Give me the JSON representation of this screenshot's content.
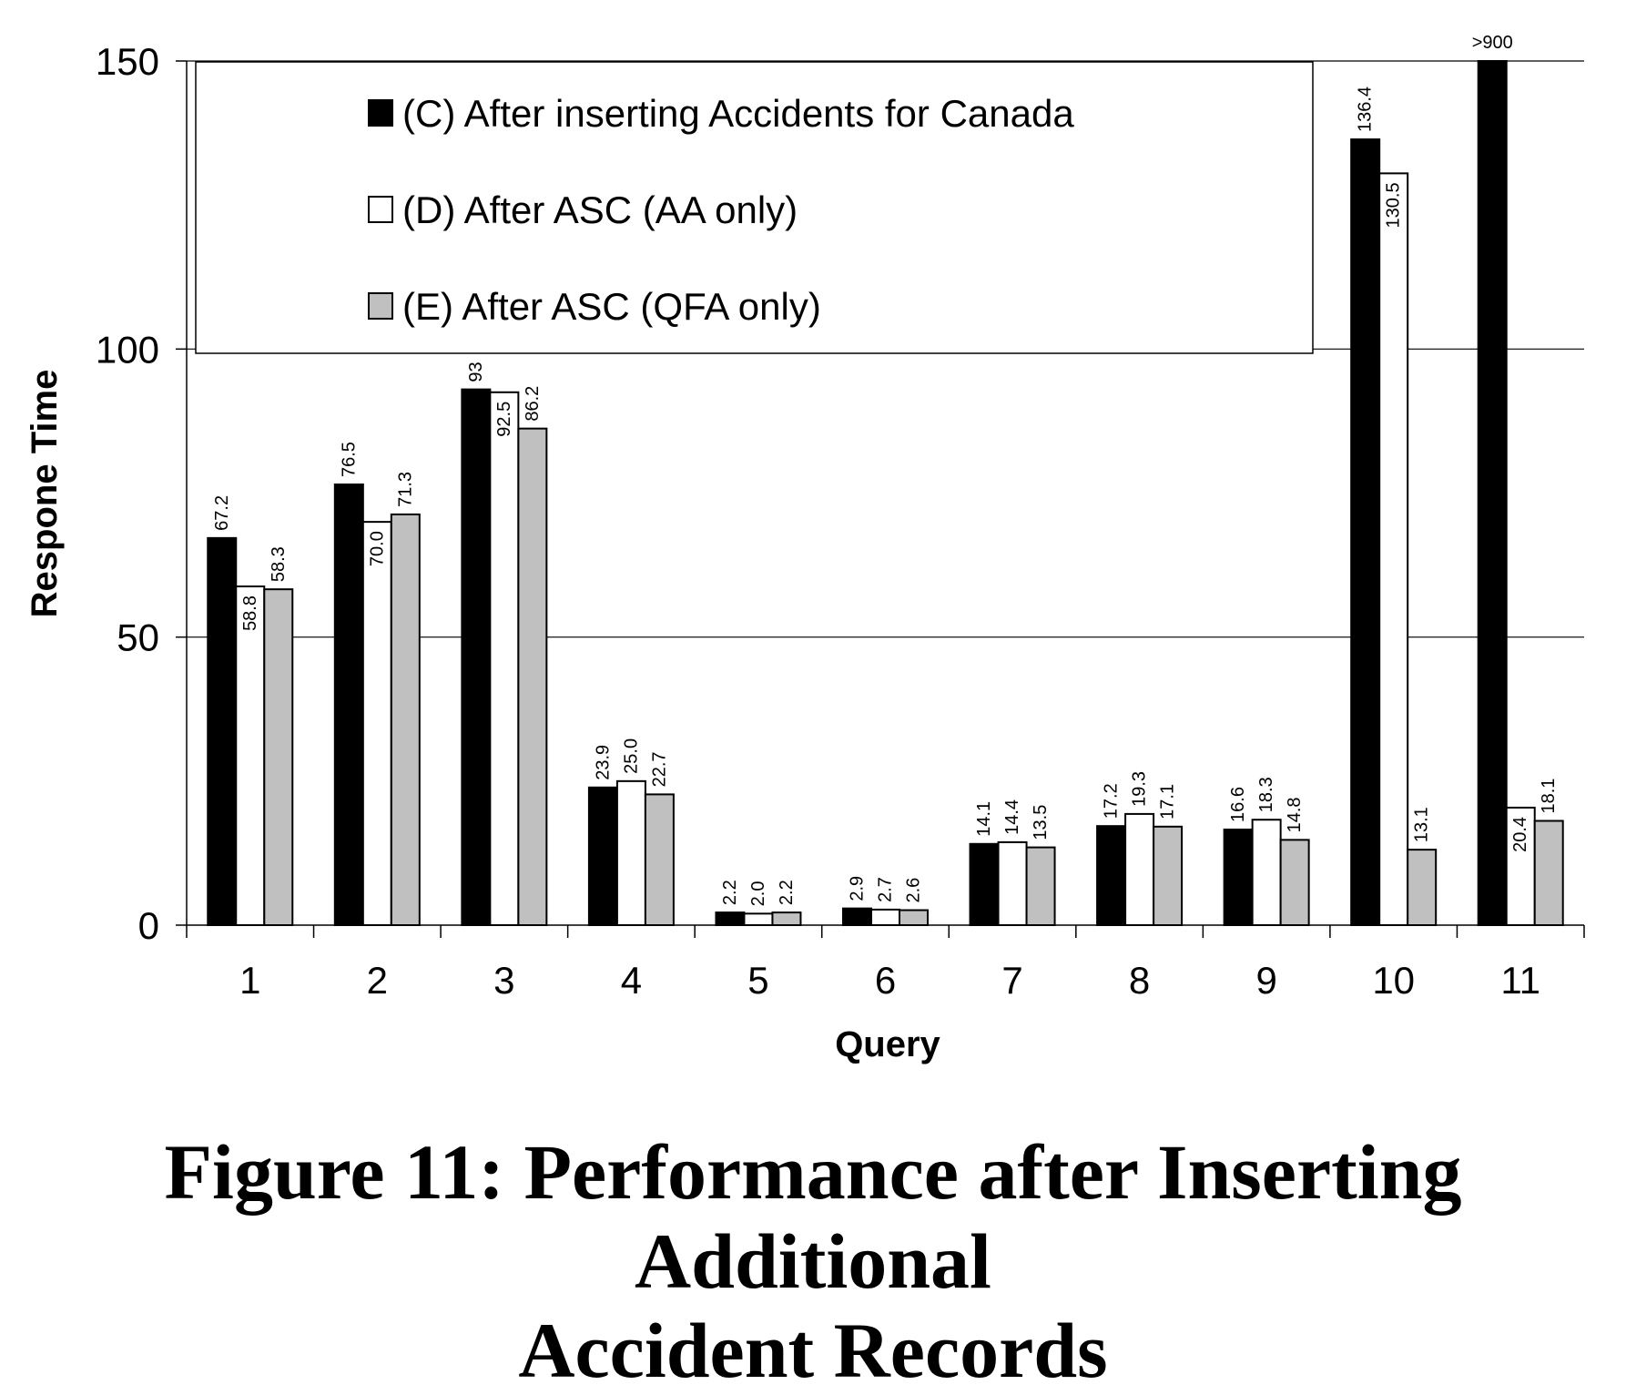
{
  "caption": {
    "line1": "Figure 11: Performance after Inserting Additional",
    "line2": "Accident Records"
  },
  "chart_data": {
    "type": "bar",
    "title": "",
    "xlabel": "Query",
    "ylabel": "Respone Time",
    "ylim": [
      0,
      150
    ],
    "yticks": [
      0,
      50,
      100,
      150
    ],
    "grid": true,
    "legend_position": "top-left (boxed)",
    "categories": [
      "1",
      "2",
      "3",
      "4",
      "5",
      "6",
      "7",
      "8",
      "9",
      "10",
      "11"
    ],
    "series": [
      {
        "name": "(C) After inserting Accidents for Canada",
        "color": "#000000",
        "values": [
          67.2,
          76.5,
          93,
          23.9,
          2.2,
          2.9,
          14.1,
          17.2,
          16.6,
          136.4,
          150
        ],
        "labels": [
          "67.2",
          "76.5",
          "93",
          "23.9",
          "2.2",
          "2.9",
          "14.1",
          "17.2",
          "16.6",
          "136.4",
          ">900"
        ]
      },
      {
        "name": "(D) After ASC (AA only)",
        "color": "#ffffff",
        "values": [
          58.8,
          70.0,
          92.5,
          25.0,
          2.0,
          2.7,
          14.4,
          19.3,
          18.3,
          130.5,
          20.4
        ],
        "labels": [
          "58.8",
          "70.0",
          "92.5",
          "25.0",
          "2.0",
          "2.7",
          "14.4",
          "19.3",
          "18.3",
          "130.5",
          "20.4"
        ]
      },
      {
        "name": "(E) After ASC (QFA only)",
        "color": "#c0c0c0",
        "values": [
          58.3,
          71.3,
          86.2,
          22.7,
          2.2,
          2.6,
          13.5,
          17.1,
          14.8,
          13.1,
          18.1
        ],
        "labels": [
          "58.3",
          "71.3",
          "86.2",
          "22.7",
          "2.2",
          "2.6",
          "13.5",
          "17.1",
          "14.8",
          "13.1",
          "18.1"
        ]
      }
    ]
  }
}
